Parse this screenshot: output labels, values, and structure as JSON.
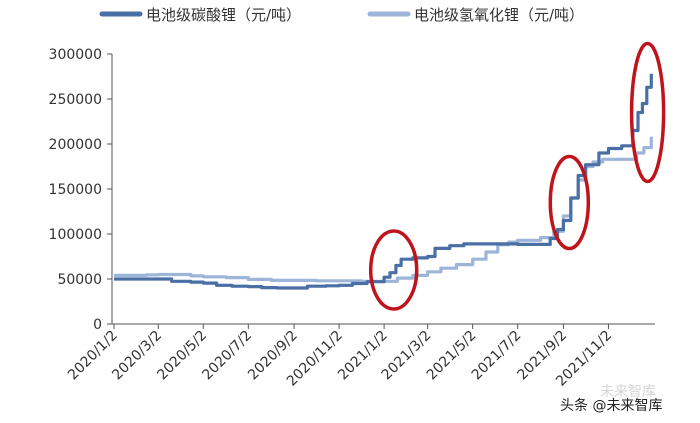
{
  "chart_data": {
    "type": "line",
    "title": "",
    "xlabel": "",
    "ylabel": "",
    "ylim": [
      0,
      300000
    ],
    "yticks": [
      "0",
      "50000",
      "100000",
      "150000",
      "200000",
      "250000",
      "300000"
    ],
    "xticks": [
      "2020/1/2",
      "2020/3/2",
      "2020/5/2",
      "2020/7/2",
      "2020/9/2",
      "2020/11/2",
      "2021/1/2",
      "2021/3/2",
      "2021/5/2",
      "2021/7/2",
      "2021/9/2",
      "2021/11/2"
    ],
    "grid": false,
    "legend_position": "top",
    "series": [
      {
        "name": "电池级碳酸锂（元/吨）",
        "color": "#4a6fa5",
        "points": [
          [
            "2020-01-02",
            50000
          ],
          [
            "2020-02-10",
            50000
          ],
          [
            "2020-03-02",
            50000
          ],
          [
            "2020-03-20",
            47500
          ],
          [
            "2020-04-15",
            46500
          ],
          [
            "2020-05-02",
            45500
          ],
          [
            "2020-05-20",
            43000
          ],
          [
            "2020-06-10",
            42000
          ],
          [
            "2020-07-02",
            41500
          ],
          [
            "2020-07-20",
            40500
          ],
          [
            "2020-08-10",
            40000
          ],
          [
            "2020-09-02",
            40000
          ],
          [
            "2020-09-20",
            42000
          ],
          [
            "2020-10-15",
            42500
          ],
          [
            "2020-11-02",
            43000
          ],
          [
            "2020-11-20",
            45000
          ],
          [
            "2020-12-10",
            47000
          ],
          [
            "2021-01-02",
            52000
          ],
          [
            "2021-01-10",
            57000
          ],
          [
            "2021-01-18",
            65000
          ],
          [
            "2021-01-25",
            72000
          ],
          [
            "2021-02-10",
            73500
          ],
          [
            "2021-03-02",
            75000
          ],
          [
            "2021-03-12",
            84000
          ],
          [
            "2021-04-01",
            87000
          ],
          [
            "2021-04-20",
            89000
          ],
          [
            "2021-05-02",
            89000
          ],
          [
            "2021-06-01",
            89000
          ],
          [
            "2021-07-02",
            88500
          ],
          [
            "2021-08-02",
            88500
          ],
          [
            "2021-08-15",
            95000
          ],
          [
            "2021-08-25",
            105000
          ],
          [
            "2021-09-02",
            115000
          ],
          [
            "2021-09-12",
            140000
          ],
          [
            "2021-09-22",
            165000
          ],
          [
            "2021-10-02",
            177000
          ],
          [
            "2021-10-10",
            177000
          ],
          [
            "2021-10-20",
            190000
          ],
          [
            "2021-11-02",
            195000
          ],
          [
            "2021-11-20",
            198000
          ],
          [
            "2021-11-30",
            198000
          ],
          [
            "2021-12-05",
            215000
          ],
          [
            "2021-12-12",
            235000
          ],
          [
            "2021-12-18",
            245000
          ],
          [
            "2021-12-24",
            263000
          ],
          [
            "2021-12-30",
            278000
          ]
        ]
      },
      {
        "name": "电池级氢氧化锂（元/吨）",
        "color": "#9db5d8",
        "points": [
          [
            "2020-01-02",
            54000
          ],
          [
            "2020-02-15",
            54500
          ],
          [
            "2020-03-02",
            55000
          ],
          [
            "2020-03-20",
            55000
          ],
          [
            "2020-04-15",
            53500
          ],
          [
            "2020-05-02",
            52500
          ],
          [
            "2020-06-02",
            51500
          ],
          [
            "2020-07-02",
            49500
          ],
          [
            "2020-08-02",
            48500
          ],
          [
            "2020-09-02",
            48500
          ],
          [
            "2020-10-02",
            48000
          ],
          [
            "2020-11-02",
            48000
          ],
          [
            "2020-12-02",
            47500
          ],
          [
            "2021-01-02",
            47500
          ],
          [
            "2021-01-20",
            51000
          ],
          [
            "2021-02-10",
            54000
          ],
          [
            "2021-03-02",
            58000
          ],
          [
            "2021-03-20",
            62000
          ],
          [
            "2021-04-10",
            66000
          ],
          [
            "2021-05-02",
            72000
          ],
          [
            "2021-05-20",
            80000
          ],
          [
            "2021-06-05",
            88000
          ],
          [
            "2021-06-20",
            91000
          ],
          [
            "2021-07-02",
            93000
          ],
          [
            "2021-08-02",
            96000
          ],
          [
            "2021-08-20",
            103000
          ],
          [
            "2021-09-02",
            120000
          ],
          [
            "2021-09-12",
            140000
          ],
          [
            "2021-09-22",
            160000
          ],
          [
            "2021-10-02",
            175000
          ],
          [
            "2021-10-12",
            180000
          ],
          [
            "2021-10-25",
            183000
          ],
          [
            "2021-11-02",
            183000
          ],
          [
            "2021-12-02",
            183000
          ],
          [
            "2021-12-10",
            190000
          ],
          [
            "2021-12-20",
            196000
          ],
          [
            "2021-12-30",
            208000
          ]
        ]
      }
    ],
    "annotations": [
      {
        "type": "ellipse",
        "color": "#c0141d",
        "center_date": "2021-01-15",
        "center_value": 60000
      },
      {
        "type": "ellipse",
        "color": "#c0141d",
        "center_date": "2021-09-10",
        "center_value": 135000
      },
      {
        "type": "ellipse",
        "color": "#c0141d",
        "center_date": "2021-12-25",
        "center_value": 235000
      }
    ]
  },
  "watermark": {
    "text": "头条 @未来智库",
    "faded_text": "未来智库"
  }
}
